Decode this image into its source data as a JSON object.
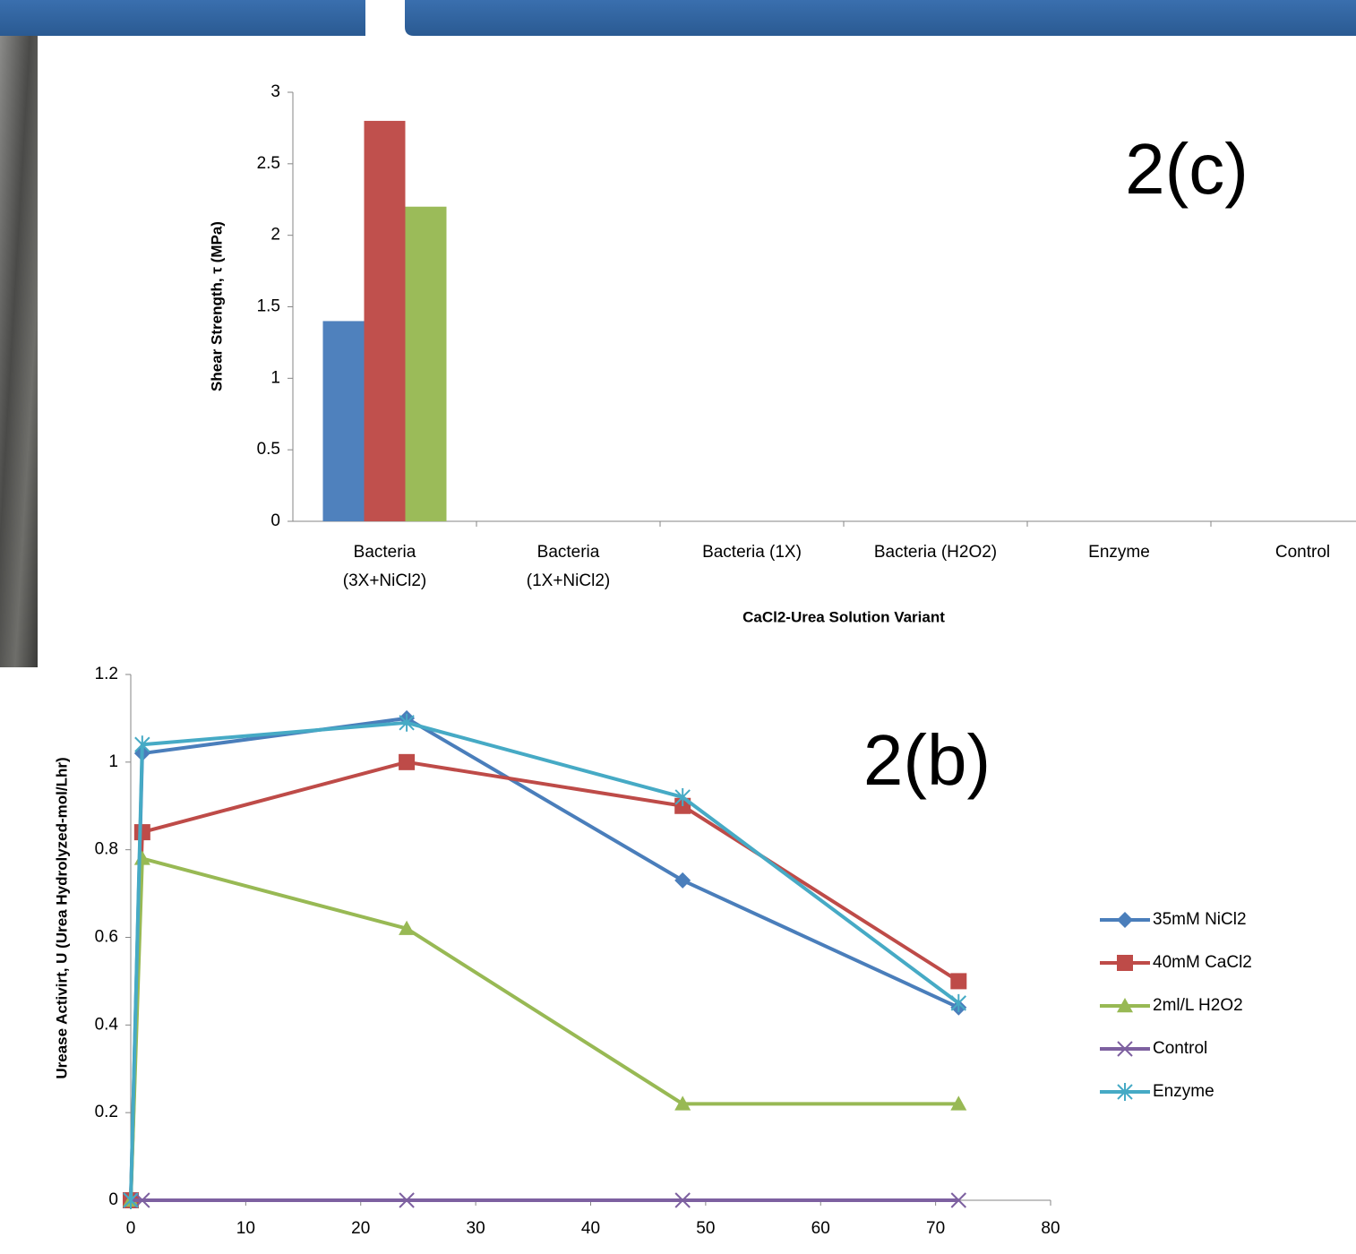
{
  "chart_data": [
    {
      "type": "bar",
      "annotation": "2(c)",
      "y_label": "Shear Strength, τ (MPa)",
      "x_label": "CaCl2-Urea Solution Variant",
      "categories": [
        "Bacteria (3X+NiCl2)",
        "Bacteria (1X+NiCl2)",
        "Bacteria (1X)",
        "Bacteria (H2O2)",
        "Enzyme",
        "Control"
      ],
      "series": [
        {
          "color": "#4f81bd",
          "values": [
            1.4,
            null,
            null,
            null,
            null,
            null
          ]
        },
        {
          "color": "#c0504d",
          "values": [
            2.8,
            null,
            null,
            null,
            null,
            null
          ]
        },
        {
          "color": "#9bbb59",
          "values": [
            2.2,
            null,
            null,
            null,
            null,
            null
          ]
        }
      ],
      "ylim": [
        0,
        3
      ],
      "yticks": [
        0,
        0.5,
        1,
        1.5,
        2,
        2.5,
        3
      ]
    },
    {
      "type": "line",
      "annotation": "2(b)",
      "y_label": "Urease Activirt, U (Urea Hydrolyzed-mol/Lhr)",
      "x": [
        0,
        1,
        24,
        48,
        72
      ],
      "series": [
        {
          "name": "35mM NiCl2",
          "color": "#4a7ebb",
          "marker": "diamond",
          "values": [
            0,
            1.02,
            1.1,
            0.73,
            0.44
          ]
        },
        {
          "name": "40mM CaCl2",
          "color": "#be4b48",
          "marker": "square",
          "values": [
            0,
            0.84,
            1.0,
            0.9,
            0.5
          ]
        },
        {
          "name": "2ml/L H2O2",
          "color": "#98b954",
          "marker": "triangle",
          "values": [
            0,
            0.78,
            0.62,
            0.22,
            0.22
          ]
        },
        {
          "name": "Control",
          "color": "#7d60a0",
          "marker": "x",
          "values": [
            0,
            0,
            0,
            0,
            0
          ]
        },
        {
          "name": "Enzyme",
          "color": "#46aac5",
          "marker": "star",
          "values": [
            0,
            1.04,
            1.09,
            0.92,
            0.45
          ]
        }
      ],
      "xlim": [
        0,
        80
      ],
      "xticks": [
        0,
        10,
        20,
        30,
        40,
        50,
        60,
        70,
        80
      ],
      "ylim": [
        0,
        1.2
      ],
      "yticks": [
        0,
        0.2,
        0.4,
        0.6,
        0.8,
        1,
        1.2
      ],
      "legend": "right"
    }
  ]
}
